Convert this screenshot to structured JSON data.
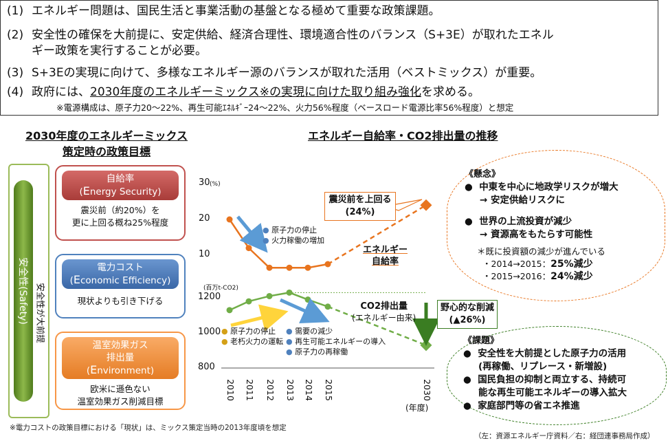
{
  "points": [
    {
      "num": "(1)",
      "text": "エネルギー問題は、国民生活と事業活動の基盤となる極めて重要な政策課題。"
    },
    {
      "num": "(2)",
      "text": "安全性の確保を大前提に、安定供給、経済合理性、環境適合性のバランス（S+3E）が取れたエネル",
      "text2": "ギー政策を実行することが必要。"
    },
    {
      "num": "(3)",
      "text": "S+3Eの実現に向けて、多様なエネルギー源のバランスが取れた活用（ベストミックス）が重要。"
    },
    {
      "num": "(4)",
      "text_pre": "政府には、",
      "text_ul": "2030年度のエネルギーミックス※の実現に向けた取り組み強化",
      "text_post": "を求める。"
    }
  ],
  "sub_note": "※電源構成は、原子力20～22%、再生可能ｴﾈﾙｷﾞｰ24～22%、火力56%程度（ベースロード電源比率56%程度）と想定",
  "left_heading_1": "2030年度のエネルギーミックス",
  "left_heading_2": "策定時の政策目標",
  "safety": {
    "main": "安全性(Safety)",
    "side": "安全性が大前提"
  },
  "targets": [
    {
      "head1": "自給率",
      "head2_big": "E",
      "head2_rest": "nergy Security)",
      "head2_open": "(",
      "body1": "震災前（約20%）を",
      "body2": "更に上回る概ね25%程度",
      "color": "#c0504d"
    },
    {
      "head1": "電力コスト",
      "head2_big": "E",
      "head2_rest": "conomic Efficiency)",
      "head2_open": "(",
      "body1": "現状よりも引き下げる",
      "body2": "",
      "color": "#4f81bd"
    },
    {
      "head1": "温室効果ガス",
      "head1b": "排出量",
      "head2_big": "E",
      "head2_rest": "nvironment)",
      "head2_open": "(",
      "body1": "欧米に遜色ない",
      "body2": "温室効果ガス削減目標",
      "color": "#f79646"
    }
  ],
  "footnote_left": "※電力コストの政策目標における「現状」は、ミックス策定当時の2013年度頃を想定",
  "footnote_right": "（左：資源エネルギー庁資料／右：経団連事務局作成）",
  "chart_heading": "エネルギー自給率・CO2排出量の推移",
  "chart_data": {
    "type": "line",
    "x": [
      "2010",
      "2011",
      "2012",
      "2013",
      "2014",
      "2015",
      "2030"
    ],
    "xlabel": "(年度)",
    "self_sufficiency": {
      "unit": "(%)",
      "ticks": [
        "30",
        "20",
        "10"
      ],
      "ylim": [
        0,
        30
      ],
      "values": [
        20,
        12,
        6.5,
        6.5,
        6.5,
        7.5,
        24
      ],
      "label1": "エネルギー",
      "label2": "自給率",
      "color": "#e8741e"
    },
    "co2": {
      "unit": "(百万t-CO2)",
      "ticks": [
        "1200",
        "1000",
        "800"
      ],
      "ylim": [
        800,
        1300
      ],
      "values": [
        1130,
        1180,
        1210,
        1230,
        1190,
        1150,
        930
      ],
      "label1": "CO2排出量",
      "label2": "(エネルギー由来)",
      "color": "#70ad47"
    }
  },
  "notes": {
    "decline_a": "原子力の停止",
    "decline_b": "火力稼働の増加",
    "co2_up_a": "原子力の停止",
    "co2_up_b": "老朽火力の運転",
    "co2_down_a": "需要の減少",
    "co2_down_b": "再生可能エネルギーの導入",
    "co2_down_c": "原子力の再稼働"
  },
  "callout_target": {
    "line1": "震災前を上回る",
    "line2": "(24%)"
  },
  "callout_reduction": {
    "line1": "野心的な削減",
    "line2": "(▲26%)"
  },
  "concern": {
    "title": "《懸念》",
    "b1": "中東を中心に地政学リスクが増大",
    "b1sub": "→ 安定供給リスクに",
    "b2": "世界の上流投資が減少",
    "b2sub": "→ 資源高をもたらす可能性",
    "n1": "＊既に投資額の減少が進んでいる",
    "n2_pre": "・2014→2015：",
    "n2_val": "25%減少",
    "n3_pre": "・2015→2016：",
    "n3_val": "24%減少"
  },
  "issues": {
    "title": "《課題》",
    "b1": "安全性を大前提とした原子力の活用",
    "b1b": "(再稼働、リプレース・新増設)",
    "b2": "国民負担の抑制と両立する、持続可",
    "b2b": "能な再生可能エネルギーの導入拡大",
    "b3": "家庭部門等の省エネ推進"
  }
}
